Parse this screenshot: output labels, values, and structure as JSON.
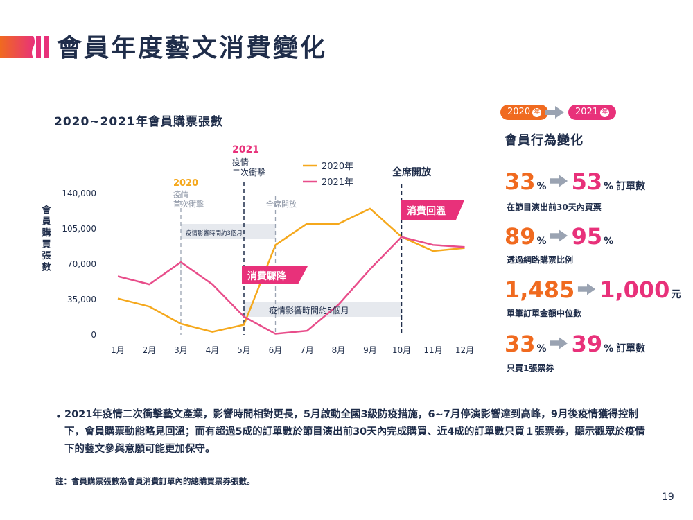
{
  "page": {
    "title": "會員年度藝文消費變化",
    "page_number": "19"
  },
  "chart_data": {
    "type": "line",
    "title": "2020~2021年會員購票張數",
    "ylabel": "會員購買張數",
    "xlabel": "",
    "categories": [
      "1月",
      "2月",
      "3月",
      "4月",
      "5月",
      "6月",
      "7月",
      "8月",
      "9月",
      "10月",
      "11月",
      "12月"
    ],
    "yticks": [
      "0",
      "35,000",
      "70,000",
      "105,000",
      "140,000"
    ],
    "ylim": [
      0,
      140000
    ],
    "series": [
      {
        "name": "2020年",
        "color": "#f5a81c",
        "values": [
          36000,
          28000,
          11000,
          3000,
          10000,
          89000,
          110000,
          110000,
          125000,
          97000,
          83000,
          86000
        ]
      },
      {
        "name": "2021年",
        "color": "#e84d8a",
        "values": [
          58000,
          50000,
          72000,
          50000,
          18000,
          1000,
          4000,
          30000,
          65000,
          97000,
          89000,
          87000
        ]
      }
    ],
    "legend_position": "top-center",
    "annotations": {
      "y2020_label": "2020",
      "y2020_event": [
        "疫情",
        "首次衝擊"
      ],
      "y2020_open": "全席開放",
      "y2020_band": "疫情影響時間約3個月",
      "y2021_label": "2021",
      "y2021_event": [
        "疫情",
        "二次衝擊"
      ],
      "y2021_drop": "消費驟降",
      "y2021_band": "疫情影響時間約5個月",
      "full_open": "全席開放",
      "recovery": "消費回溫"
    }
  },
  "behavior": {
    "year_from": "2020",
    "year_to": "2021",
    "year_suffix": "年",
    "title": "會員行為變化",
    "stats": [
      {
        "from": "33",
        "from_unit": "%",
        "to": "53",
        "to_unit": "%",
        "suffix": "訂單數",
        "desc": "在節目演出前30天內買票"
      },
      {
        "from": "89",
        "from_unit": "%",
        "to": "95",
        "to_unit": "%",
        "suffix": "",
        "desc": "透過網路購票比例"
      },
      {
        "from": "1,485",
        "from_unit": "",
        "to": "1,000",
        "to_unit": "元",
        "suffix": "",
        "desc": "單筆訂單金額中位數"
      },
      {
        "from": "33",
        "from_unit": "%",
        "to": "39",
        "to_unit": "%",
        "suffix": "訂單數",
        "desc": "只買1張票券"
      }
    ]
  },
  "note": {
    "bullet": "•",
    "text": "2021年疫情二次衝擊藝文產業，影響時間相對更長，5月啟動全國3級防疫措施，6~7月停演影響達到高峰，9月後疫情獲得控制下，會員購票動能略見回溫；而有超過5成的訂單數於節目演出前30天內完成購買、近4成的訂單數只買１張票券，顯示觀眾於疫情下的藝文參與意願可能更加保守。",
    "footnote": "註：會員購票張數為會員消費訂單內的總購買票券張數。"
  },
  "colors": {
    "navy": "#1f2d4a",
    "orange": "#f06a1f",
    "pink": "#e8317a",
    "line2020": "#f5a81c",
    "line2021": "#e84d8a",
    "band": "#e6e9ee",
    "arrow": "#9aa3b2"
  }
}
